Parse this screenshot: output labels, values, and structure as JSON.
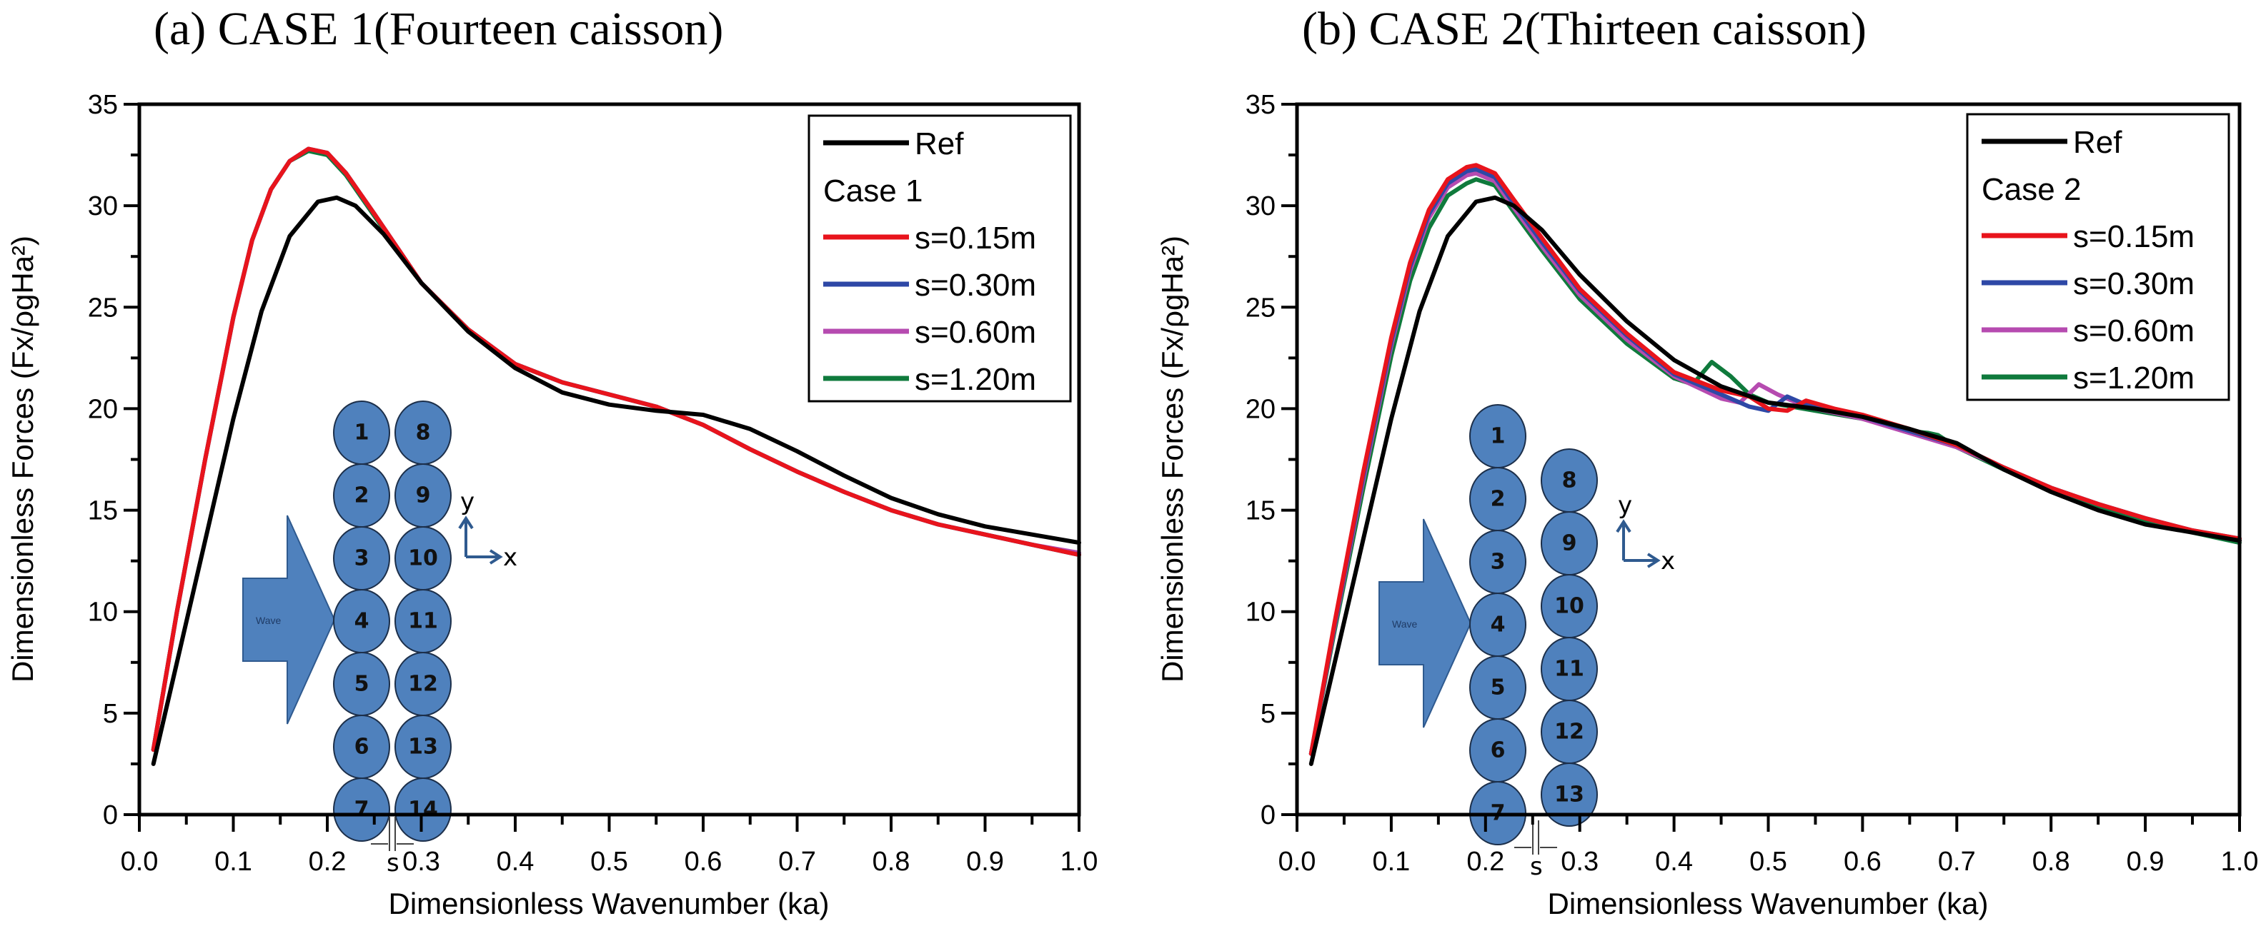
{
  "chart_data": [
    {
      "type": "line",
      "id": "case1",
      "title": "(a) CASE 1(Fourteen caisson)",
      "xlabel": "Dimensionless Wavenumber (ka)",
      "ylabel": "Dimensionless Forces (Fx/ρgHa²)",
      "xlim": [
        0.0,
        1.0
      ],
      "ylim": [
        0,
        35
      ],
      "xticks": [
        "0.0",
        "0.1",
        "0.2",
        "0.3",
        "0.4",
        "0.5",
        "0.6",
        "0.7",
        "0.8",
        "0.9",
        "1.0"
      ],
      "yticks": [
        "0",
        "5",
        "10",
        "15",
        "20",
        "25",
        "30",
        "35"
      ],
      "grid": false,
      "legend_position": "top-right",
      "legend_header": "Case 1",
      "series": [
        {
          "name": "Ref",
          "color": "#000000",
          "x": [
            0.015,
            0.04,
            0.07,
            0.1,
            0.13,
            0.16,
            0.19,
            0.21,
            0.23,
            0.26,
            0.3,
            0.35,
            0.4,
            0.45,
            0.5,
            0.55,
            0.6,
            0.65,
            0.7,
            0.75,
            0.8,
            0.85,
            0.9,
            0.95,
            1.0
          ],
          "y": [
            2.5,
            7.5,
            13.5,
            19.5,
            24.8,
            28.5,
            30.2,
            30.4,
            30.0,
            28.6,
            26.2,
            23.8,
            22.0,
            20.8,
            20.2,
            19.9,
            19.7,
            19.0,
            17.9,
            16.7,
            15.6,
            14.8,
            14.2,
            13.8,
            13.4
          ]
        },
        {
          "name": "s=0.15m",
          "color": "#e8141c",
          "x": [
            0.015,
            0.04,
            0.07,
            0.1,
            0.12,
            0.14,
            0.16,
            0.18,
            0.2,
            0.22,
            0.25,
            0.3,
            0.35,
            0.4,
            0.45,
            0.5,
            0.55,
            0.6,
            0.65,
            0.7,
            0.75,
            0.8,
            0.85,
            0.9,
            0.95,
            1.0
          ],
          "y": [
            3.2,
            10.0,
            17.5,
            24.5,
            28.3,
            30.8,
            32.2,
            32.8,
            32.6,
            31.6,
            29.6,
            26.2,
            23.9,
            22.2,
            21.3,
            20.7,
            20.1,
            19.2,
            18.0,
            16.9,
            15.9,
            15.0,
            14.3,
            13.8,
            13.3,
            12.8
          ]
        },
        {
          "name": "s=0.30m",
          "color": "#2e48a6",
          "x": [
            0.015,
            0.04,
            0.07,
            0.1,
            0.12,
            0.14,
            0.16,
            0.18,
            0.2,
            0.22,
            0.25,
            0.3,
            0.35,
            0.4,
            0.45,
            0.5,
            0.55,
            0.6,
            0.65,
            0.7,
            0.75,
            0.8,
            0.85,
            0.9,
            0.95,
            1.0
          ],
          "y": [
            3.2,
            10.0,
            17.5,
            24.5,
            28.3,
            30.8,
            32.2,
            32.8,
            32.6,
            31.6,
            29.6,
            26.2,
            23.9,
            22.2,
            21.3,
            20.7,
            20.1,
            19.2,
            18.0,
            16.9,
            15.9,
            15.0,
            14.3,
            13.8,
            13.3,
            12.8
          ]
        },
        {
          "name": "s=0.60m",
          "color": "#b64bb0",
          "x": [
            0.015,
            0.04,
            0.07,
            0.1,
            0.12,
            0.14,
            0.16,
            0.18,
            0.2,
            0.22,
            0.25,
            0.3,
            0.35,
            0.4,
            0.45,
            0.5,
            0.55,
            0.6,
            0.65,
            0.7,
            0.75,
            0.8,
            0.85,
            0.9,
            0.95,
            1.0
          ],
          "y": [
            3.2,
            10.0,
            17.5,
            24.5,
            28.3,
            30.8,
            32.2,
            32.8,
            32.6,
            31.6,
            29.6,
            26.2,
            23.9,
            22.2,
            21.3,
            20.7,
            20.1,
            19.2,
            18.0,
            16.9,
            15.9,
            15.0,
            14.3,
            13.8,
            13.3,
            12.9
          ]
        },
        {
          "name": "s=1.20m",
          "color": "#0f7a3c",
          "x": [
            0.015,
            0.04,
            0.07,
            0.1,
            0.12,
            0.14,
            0.16,
            0.18,
            0.2,
            0.22,
            0.25,
            0.3,
            0.35,
            0.4,
            0.45,
            0.5,
            0.55,
            0.6,
            0.65,
            0.7,
            0.75,
            0.8,
            0.85,
            0.9,
            0.95,
            1.0
          ],
          "y": [
            3.2,
            10.0,
            17.5,
            24.5,
            28.3,
            30.8,
            32.2,
            32.7,
            32.5,
            31.5,
            29.5,
            26.2,
            23.9,
            22.2,
            21.3,
            20.7,
            20.1,
            19.2,
            18.0,
            16.9,
            15.9,
            15.0,
            14.3,
            13.8,
            13.3,
            12.8
          ]
        }
      ],
      "inset": {
        "wave_label": "Wave",
        "caissons_left": [
          "1",
          "2",
          "3",
          "4",
          "5",
          "6",
          "7"
        ],
        "caissons_right": [
          "8",
          "9",
          "10",
          "11",
          "12",
          "13",
          "14"
        ],
        "gap_label": "s",
        "axis_x": "x",
        "axis_y": "y",
        "fill_color": "#4f81bd"
      }
    },
    {
      "type": "line",
      "id": "case2",
      "title": "(b) CASE 2(Thirteen caisson)",
      "xlabel": "Dimensionless Wavenumber (ka)",
      "ylabel": "Dimensionless Forces (Fx/ρgHa²)",
      "xlim": [
        0.0,
        1.0
      ],
      "ylim": [
        0,
        35
      ],
      "xticks": [
        "0.0",
        "0.1",
        "0.2",
        "0.3",
        "0.4",
        "0.5",
        "0.6",
        "0.7",
        "0.8",
        "0.9",
        "1.0"
      ],
      "yticks": [
        "0",
        "5",
        "10",
        "15",
        "20",
        "25",
        "30",
        "35"
      ],
      "grid": false,
      "legend_position": "top-right",
      "legend_header": "Case 2",
      "series": [
        {
          "name": "Ref",
          "color": "#000000",
          "x": [
            0.015,
            0.04,
            0.07,
            0.1,
            0.13,
            0.16,
            0.19,
            0.21,
            0.23,
            0.26,
            0.3,
            0.35,
            0.4,
            0.45,
            0.5,
            0.55,
            0.6,
            0.65,
            0.7,
            0.75,
            0.8,
            0.85,
            0.9,
            0.95,
            1.0
          ],
          "y": [
            2.5,
            7.5,
            13.5,
            19.5,
            24.8,
            28.5,
            30.2,
            30.4,
            30.0,
            28.8,
            26.6,
            24.3,
            22.4,
            21.1,
            20.3,
            20.0,
            19.6,
            19.0,
            18.3,
            17.0,
            15.9,
            15.0,
            14.3,
            13.9,
            13.5
          ]
        },
        {
          "name": "s=0.15m",
          "color": "#e8141c",
          "x": [
            0.015,
            0.04,
            0.07,
            0.1,
            0.12,
            0.14,
            0.16,
            0.18,
            0.19,
            0.21,
            0.23,
            0.26,
            0.3,
            0.35,
            0.4,
            0.45,
            0.48,
            0.5,
            0.52,
            0.54,
            0.57,
            0.6,
            0.65,
            0.7,
            0.75,
            0.8,
            0.85,
            0.9,
            0.95,
            1.0
          ],
          "y": [
            3.0,
            9.5,
            16.8,
            23.5,
            27.2,
            29.8,
            31.3,
            31.9,
            32.0,
            31.6,
            30.3,
            28.4,
            25.9,
            23.7,
            21.8,
            20.9,
            20.6,
            20.0,
            19.9,
            20.4,
            20.0,
            19.7,
            19.0,
            18.2,
            17.1,
            16.1,
            15.3,
            14.6,
            14.0,
            13.6
          ]
        },
        {
          "name": "s=0.30m",
          "color": "#2e48a6",
          "x": [
            0.015,
            0.04,
            0.07,
            0.1,
            0.12,
            0.14,
            0.16,
            0.18,
            0.19,
            0.21,
            0.23,
            0.26,
            0.3,
            0.35,
            0.4,
            0.45,
            0.48,
            0.5,
            0.52,
            0.54,
            0.57,
            0.6,
            0.65,
            0.7,
            0.75,
            0.8,
            0.85,
            0.9,
            0.95,
            1.0
          ],
          "y": [
            3.0,
            9.4,
            16.6,
            23.3,
            27.0,
            29.6,
            31.1,
            31.7,
            31.8,
            31.4,
            30.1,
            28.2,
            25.8,
            23.6,
            21.7,
            20.7,
            20.1,
            19.9,
            20.6,
            20.2,
            19.9,
            19.6,
            18.9,
            18.2,
            17.1,
            16.1,
            15.3,
            14.6,
            14.0,
            13.6
          ]
        },
        {
          "name": "s=0.60m",
          "color": "#b64bb0",
          "x": [
            0.015,
            0.04,
            0.07,
            0.1,
            0.12,
            0.14,
            0.16,
            0.18,
            0.19,
            0.21,
            0.23,
            0.26,
            0.3,
            0.35,
            0.4,
            0.45,
            0.47,
            0.49,
            0.51,
            0.54,
            0.57,
            0.6,
            0.65,
            0.7,
            0.75,
            0.8,
            0.85,
            0.9,
            0.95,
            1.0
          ],
          "y": [
            3.0,
            9.3,
            16.4,
            23.1,
            26.8,
            29.4,
            30.9,
            31.5,
            31.6,
            31.2,
            29.9,
            28.0,
            25.6,
            23.4,
            21.6,
            20.5,
            20.3,
            21.2,
            20.7,
            20.1,
            19.8,
            19.5,
            18.8,
            18.1,
            17.1,
            16.1,
            15.3,
            14.6,
            14.0,
            13.5
          ]
        },
        {
          "name": "s=1.20m",
          "color": "#0f7a3c",
          "x": [
            0.015,
            0.04,
            0.07,
            0.1,
            0.12,
            0.14,
            0.16,
            0.18,
            0.19,
            0.21,
            0.23,
            0.26,
            0.3,
            0.35,
            0.4,
            0.42,
            0.44,
            0.46,
            0.48,
            0.5,
            0.55,
            0.6,
            0.65,
            0.67,
            0.68,
            0.7,
            0.75,
            0.8,
            0.85,
            0.9,
            0.95,
            1.0
          ],
          "y": [
            3.0,
            9.1,
            16.0,
            22.6,
            26.3,
            28.9,
            30.5,
            31.1,
            31.3,
            31.0,
            29.7,
            27.8,
            25.4,
            23.2,
            21.5,
            21.2,
            22.3,
            21.6,
            20.7,
            20.3,
            19.9,
            19.5,
            18.9,
            18.8,
            18.7,
            18.1,
            17.0,
            16.0,
            15.2,
            14.5,
            13.9,
            13.4
          ]
        }
      ],
      "inset": {
        "wave_label": "Wave",
        "caissons_left": [
          "1",
          "2",
          "3",
          "4",
          "5",
          "6",
          "7"
        ],
        "caissons_right": [
          "8",
          "9",
          "10",
          "11",
          "12",
          "13"
        ],
        "gap_label": "s",
        "axis_x": "x",
        "axis_y": "y",
        "fill_color": "#4f81bd"
      }
    }
  ]
}
